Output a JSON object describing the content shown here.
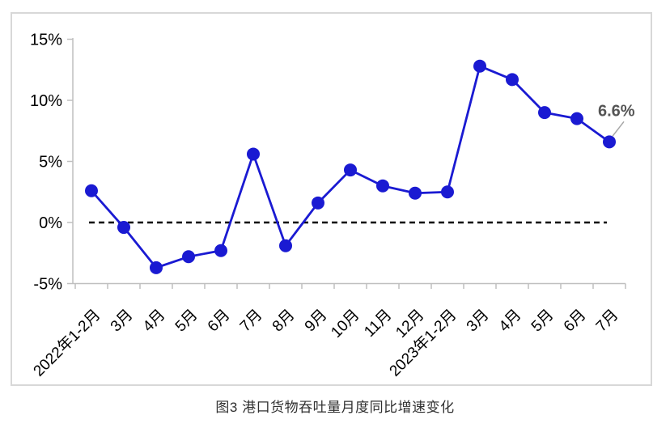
{
  "caption": "图3 港口货物吞吐量月度同比增速变化",
  "chart_data": {
    "type": "line",
    "title": "图3 港口货物吞吐量月度同比增速变化",
    "categories": [
      "2022年1-2月",
      "3月",
      "4月",
      "5月",
      "6月",
      "7月",
      "8月",
      "9月",
      "10月",
      "11月",
      "12月",
      "2023年1-2月",
      "3月",
      "4月",
      "5月",
      "6月",
      "7月"
    ],
    "series": [
      {
        "name": "港口货物吞吐量月度同比增速",
        "values": [
          2.6,
          -0.4,
          -3.7,
          -2.8,
          -2.3,
          5.6,
          -1.9,
          1.6,
          4.3,
          3.0,
          2.4,
          2.5,
          12.8,
          11.7,
          9.0,
          8.5,
          6.6
        ]
      }
    ],
    "y_axis": {
      "tick_values": [
        15,
        10,
        5,
        0,
        -5
      ],
      "tick_labels": [
        "15%",
        "10%",
        "5%",
        "0%",
        "-5%"
      ],
      "ylim": [
        -5,
        15
      ],
      "grid": false
    },
    "zero_line": {
      "value": 0,
      "style": "dashed",
      "color": "#000000"
    },
    "annotation": {
      "text": "6.6%",
      "point_index": 16
    },
    "legend": "none",
    "colors": {
      "line": "#1a1ad2",
      "marker": "#1a1ad2",
      "axis": "#bfbfbf",
      "tick_text": "#000000",
      "annotation_text": "#555555",
      "leader_line": "#a6a6a6",
      "panel_border": "#d8d8d8",
      "caption_text": "#303030"
    }
  }
}
